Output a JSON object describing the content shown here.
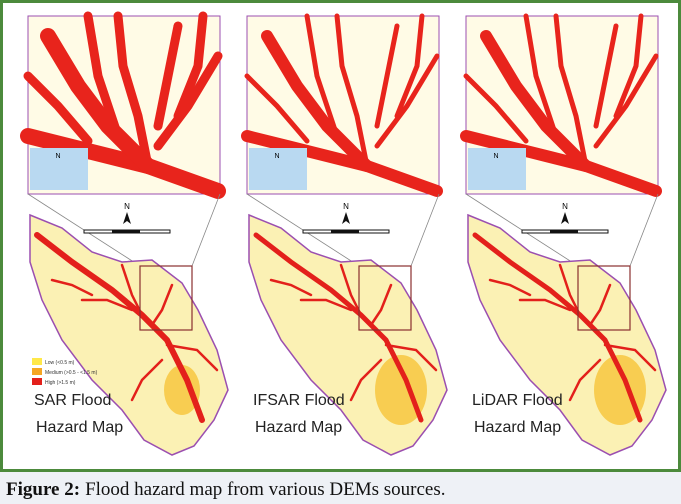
{
  "figure": {
    "panels": [
      {
        "title_line1": "SAR Flood",
        "title_line2": "Hazard Map"
      },
      {
        "title_line1": "IFSAR Flood",
        "title_line2": "Hazard Map"
      },
      {
        "title_line1": "LiDAR  Flood",
        "title_line2": "Hazard Map"
      }
    ],
    "north": "N",
    "legend": [
      "Low (<0.5 m)",
      "Medium (>0.5 - <1.5 m)",
      "High (>1.5 m)"
    ]
  },
  "caption": {
    "label": "Figure 2:",
    "text": "Flood hazard map from various DEMs sources."
  }
}
